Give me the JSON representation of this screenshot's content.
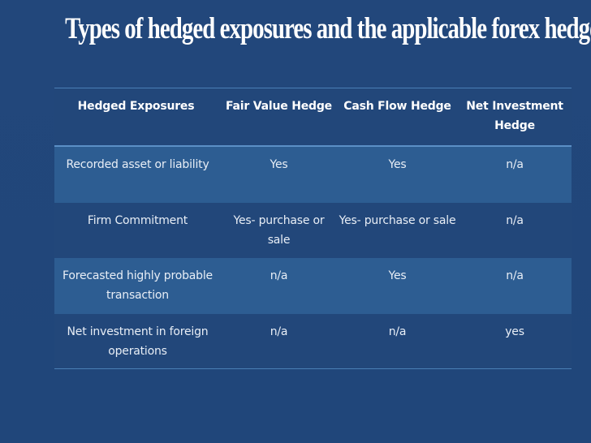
{
  "slide": {
    "title": "Types of hedged exposures and the applicable forex hedges"
  },
  "table": {
    "headers": [
      "Hedged Exposures",
      "Fair Value Hedge",
      "Cash Flow Hedge",
      "Net Investment Hedge"
    ],
    "rows": [
      [
        "Recorded asset or liability",
        "Yes",
        "Yes",
        "n/a"
      ],
      [
        "Firm Commitment",
        "Yes- purchase or sale",
        "Yes- purchase or sale",
        "n/a"
      ],
      [
        "Forecasted highly probable transaction",
        "n/a",
        "Yes",
        "n/a"
      ],
      [
        "Net investment in foreign operations",
        "n/a",
        "n/a",
        "yes"
      ]
    ]
  }
}
